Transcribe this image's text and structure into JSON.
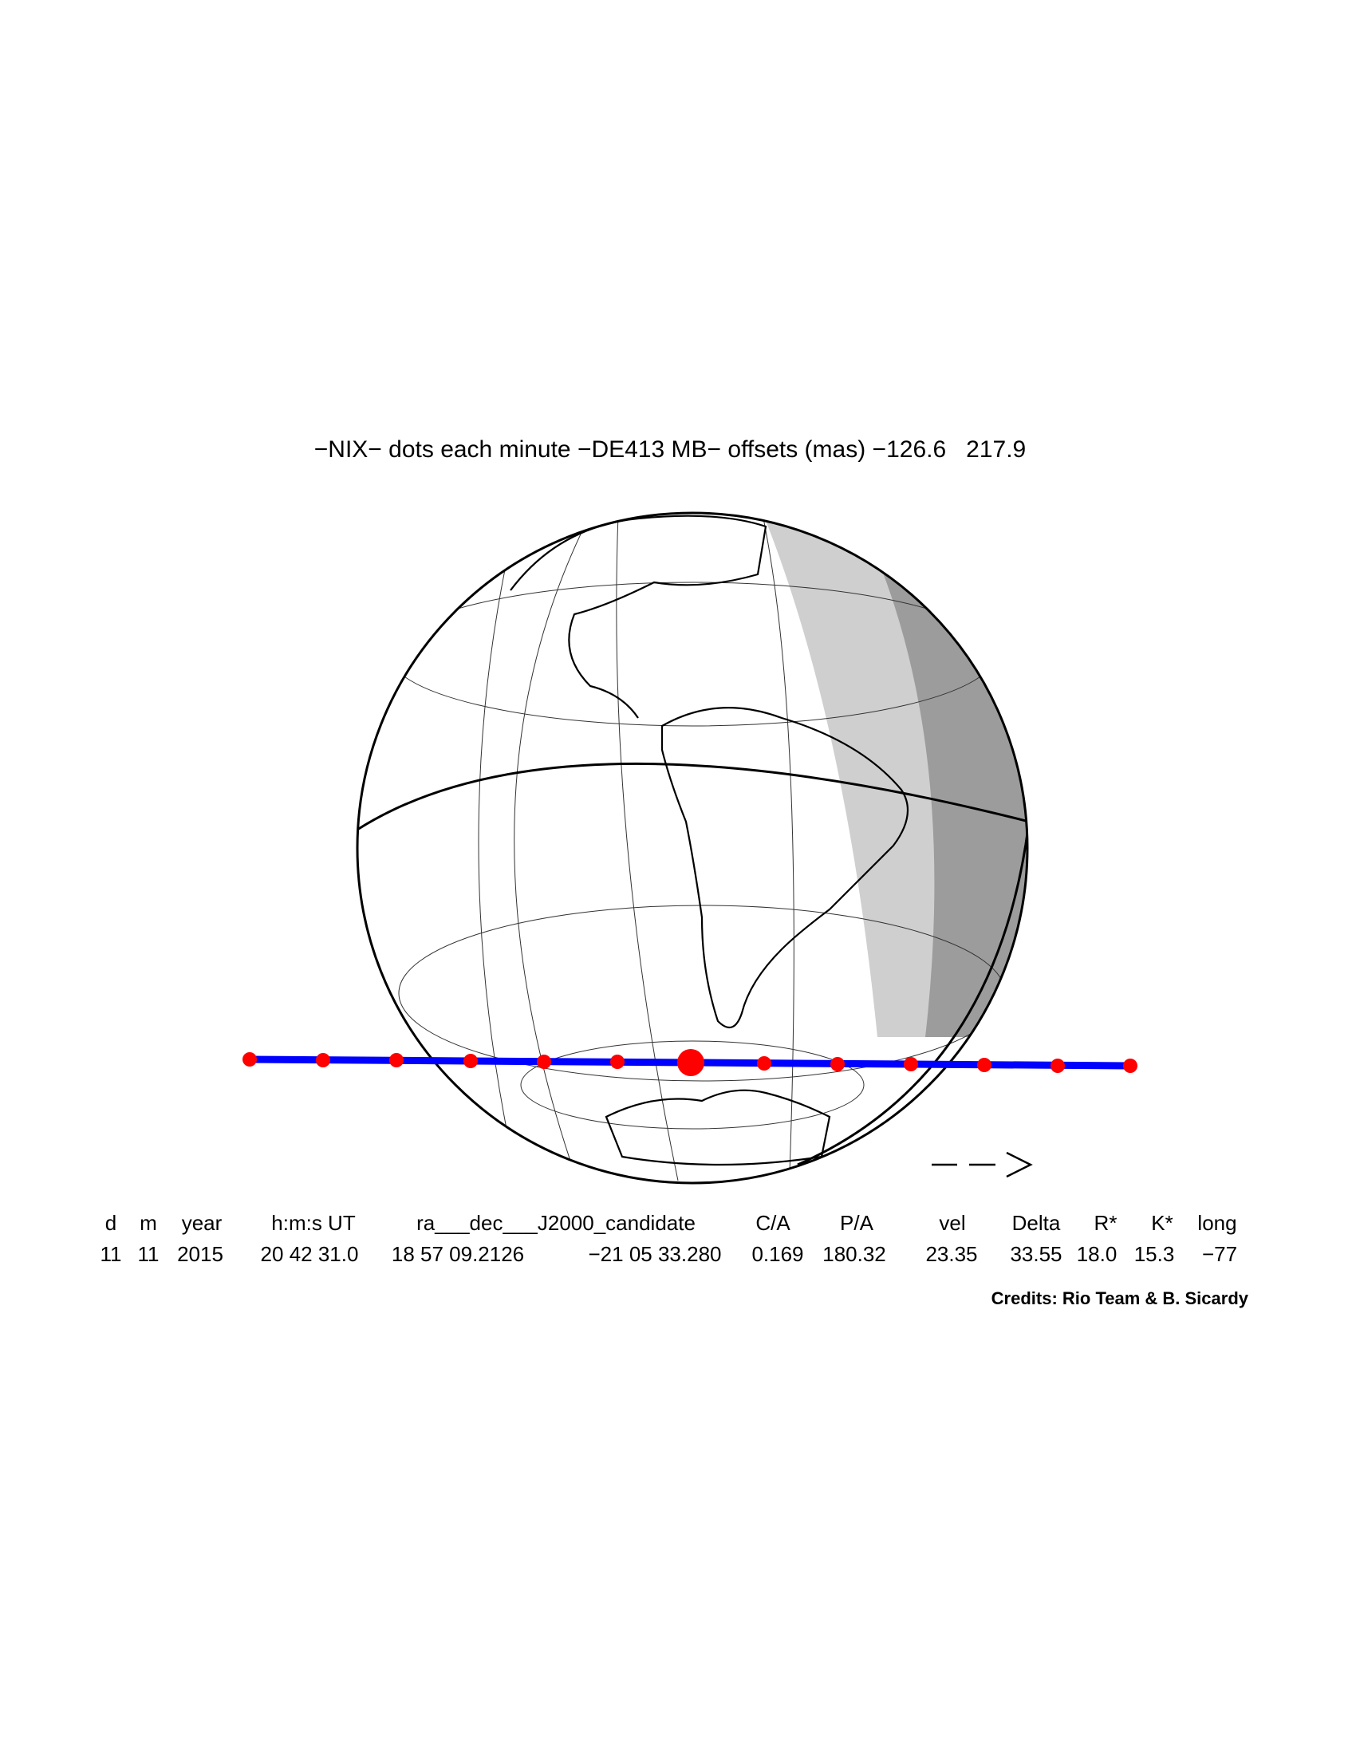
{
  "title": "−NIX− dots each minute −DE413 MB− offsets (mas) −126.6   217.9",
  "table": {
    "header": [
      "d",
      "m",
      "year",
      "h:m:s UT",
      "ra___dec___J2000_candidate",
      "C/A",
      "P/A",
      "vel",
      "Delta",
      "R*",
      "K*",
      "long"
    ],
    "values": [
      "11",
      "11",
      "2015",
      "20 42 31.0",
      "18 57 09.2126",
      "−21 05 33.280",
      "0.169",
      "180.32",
      "23.35",
      "33.55",
      "18.0",
      "15.3",
      "−77"
    ]
  },
  "credits": "Credits: Rio Team & B. Sicardy"
}
